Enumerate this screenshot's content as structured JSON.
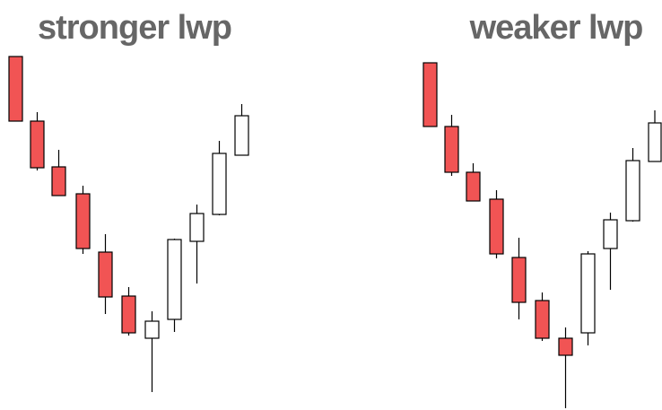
{
  "panels": [
    {
      "title": "stronger lwp"
    },
    {
      "title": "weaker lwp"
    }
  ]
}
